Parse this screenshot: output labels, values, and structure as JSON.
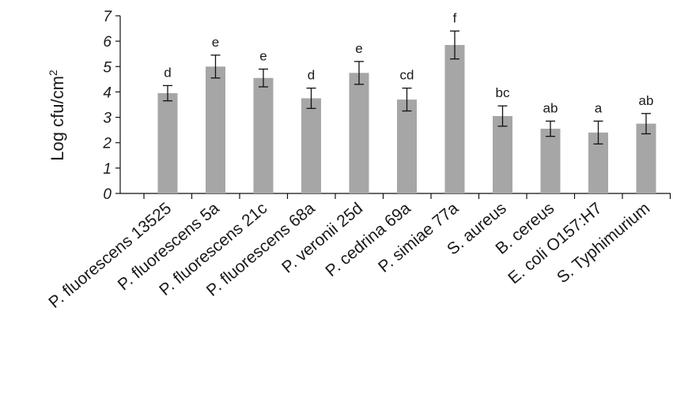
{
  "chart_data": {
    "type": "bar",
    "title": "",
    "xlabel": "",
    "ylabel": "Log cfu/cm",
    "ylabel_superscript": "2",
    "ylim": [
      0,
      7
    ],
    "yticks": [
      "0",
      "1",
      "2",
      "3",
      "4",
      "5",
      "6",
      "7"
    ],
    "grid": false,
    "bar_color": "#a6a6a6",
    "categories": [
      "P. fluorescens 13525",
      "P. fluorescens 5a",
      "P. fluorescens 21c",
      "P. fluorescens 68a",
      "P. veronii 25d",
      "P. cedrina 69a",
      "P. simiae 77a",
      "S. aureus",
      "B. cereus",
      "E. coli O157:H7",
      "S. Typhimurium"
    ],
    "values": [
      3.95,
      5.0,
      4.55,
      3.75,
      4.75,
      3.7,
      5.85,
      3.05,
      2.55,
      2.4,
      2.75
    ],
    "errors": [
      0.3,
      0.45,
      0.35,
      0.4,
      0.45,
      0.45,
      0.55,
      0.4,
      0.3,
      0.45,
      0.4
    ],
    "significance_labels": [
      "d",
      "e",
      "e",
      "d",
      "e",
      "cd",
      "f",
      "bc",
      "ab",
      "a",
      "ab"
    ]
  }
}
